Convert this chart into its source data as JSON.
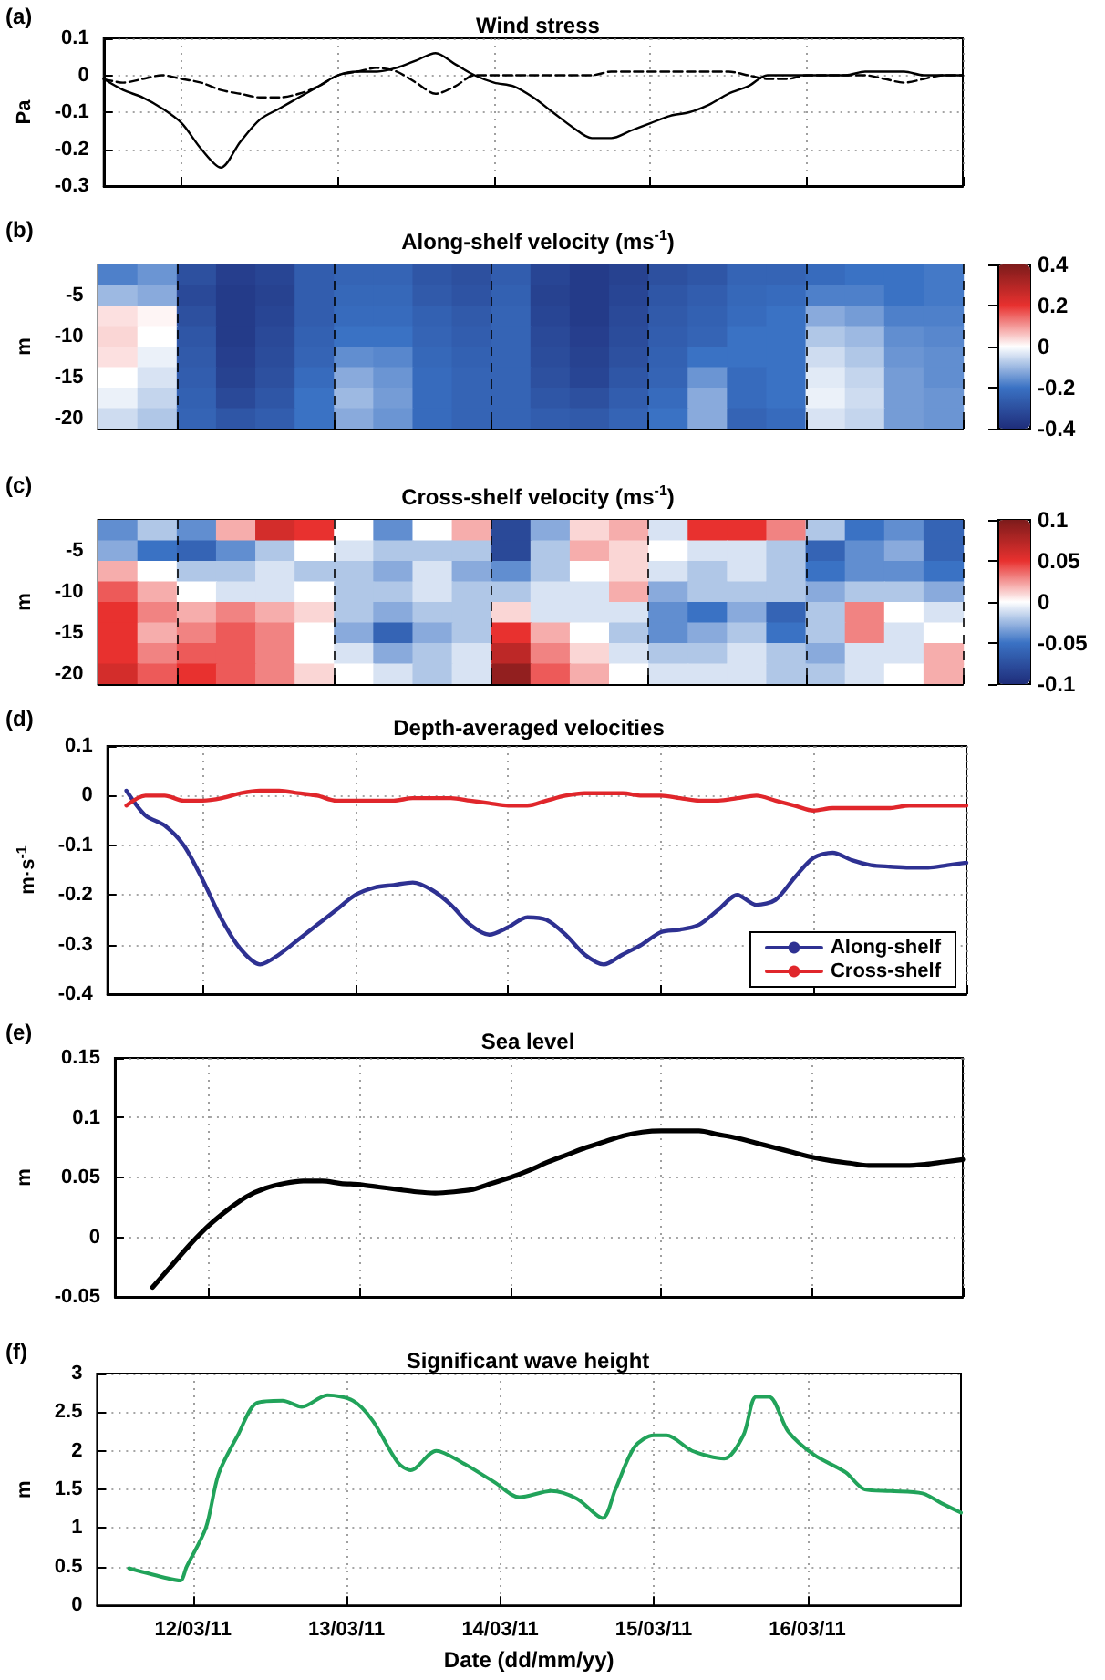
{
  "chart_data": [
    {
      "type": "line",
      "title": "Wind stress",
      "ylabel": "Pa",
      "annotations": [
        "(a)"
      ],
      "categories": [
        null,
        null,
        null,
        null,
        null,
        null,
        null,
        null,
        null,
        null,
        null,
        null,
        null,
        null,
        null,
        null,
        null,
        null,
        null,
        null,
        null,
        null,
        null,
        null,
        null,
        null,
        null,
        null,
        null,
        null,
        null,
        null,
        null,
        null,
        null,
        null,
        null,
        null,
        null,
        null,
        null,
        null,
        null,
        null,
        null
      ],
      "ylim": [
        -0.3,
        0.1
      ],
      "yticks": [
        -0.3,
        -0.2,
        -0.1,
        0,
        0.1
      ],
      "tick_labels": "y",
      "grid": true,
      "series": [
        {
          "color": "#000000",
          "line_style": "solid",
          "values": [
            -0.01,
            -0.04,
            -0.06,
            -0.09,
            -0.13,
            -0.2,
            -0.25,
            -0.18,
            -0.12,
            -0.09,
            -0.06,
            -0.03,
            0.0,
            0.01,
            0.01,
            0.02,
            0.04,
            0.06,
            0.03,
            0.0,
            -0.02,
            -0.03,
            -0.06,
            -0.1,
            -0.14,
            -0.17,
            -0.17,
            -0.15,
            -0.13,
            -0.11,
            -0.1,
            -0.08,
            -0.05,
            -0.03,
            0.0,
            0.0,
            0.0,
            0.0,
            0.0,
            0.01,
            0.01,
            0.01,
            0.0,
            0.0,
            0.0
          ]
        },
        {
          "color": "#000000",
          "line_style": "dashed",
          "values": [
            -0.01,
            -0.02,
            -0.01,
            0.0,
            -0.01,
            -0.02,
            -0.04,
            -0.05,
            -0.06,
            -0.06,
            -0.05,
            -0.03,
            0.0,
            0.01,
            0.02,
            0.01,
            -0.02,
            -0.05,
            -0.03,
            0.0,
            0.0,
            0.0,
            0.0,
            0.0,
            0.0,
            0.0,
            0.01,
            0.01,
            0.01,
            0.01,
            0.01,
            0.01,
            0.01,
            0.0,
            -0.01,
            -0.01,
            0.0,
            0.0,
            0.0,
            0.0,
            -0.01,
            -0.02,
            -0.01,
            0.0,
            0.0
          ]
        }
      ]
    },
    {
      "type": "heatmap",
      "title": "Along-shelf velocity (ms$^{-1}$)",
      "ylabel": "m",
      "annotations": [
        "(b)"
      ],
      "tick_labels": "y",
      "grid": "x",
      "categories": [
        null,
        null,
        null,
        null,
        null,
        null,
        null,
        null,
        null,
        null,
        null,
        null,
        null,
        null,
        null,
        null,
        null,
        null,
        null,
        null,
        null,
        null
      ],
      "y_categories": [
        null,
        "-5",
        null,
        "-10",
        null,
        "-15",
        null,
        "-20"
      ],
      "clim": [
        -0.4,
        0.4
      ],
      "cticks": [
        -0.4,
        -0.2,
        0,
        0.2,
        0.4
      ],
      "cells": [
        [
          -0.18,
          -0.15,
          -0.3,
          -0.35,
          -0.33,
          -0.26,
          -0.24,
          -0.24,
          -0.28,
          -0.3,
          -0.26,
          -0.33,
          -0.36,
          -0.34,
          -0.3,
          -0.28,
          -0.24,
          -0.24,
          -0.22,
          -0.2,
          -0.2,
          -0.19
        ],
        [
          -0.1,
          -0.12,
          -0.32,
          -0.36,
          -0.34,
          -0.26,
          -0.23,
          -0.23,
          -0.27,
          -0.29,
          -0.25,
          -0.34,
          -0.36,
          -0.33,
          -0.28,
          -0.26,
          -0.23,
          -0.22,
          -0.18,
          -0.18,
          -0.2,
          -0.19
        ],
        [
          0.03,
          0.01,
          -0.3,
          -0.36,
          -0.33,
          -0.26,
          -0.22,
          -0.22,
          -0.25,
          -0.27,
          -0.24,
          -0.33,
          -0.36,
          -0.32,
          -0.27,
          -0.25,
          -0.22,
          -0.2,
          -0.12,
          -0.14,
          -0.18,
          -0.18
        ],
        [
          0.04,
          0.0,
          -0.28,
          -0.36,
          -0.32,
          -0.25,
          -0.2,
          -0.2,
          -0.24,
          -0.26,
          -0.24,
          -0.32,
          -0.35,
          -0.31,
          -0.26,
          -0.24,
          -0.2,
          -0.2,
          -0.08,
          -0.1,
          -0.16,
          -0.17
        ],
        [
          0.03,
          -0.02,
          -0.27,
          -0.35,
          -0.31,
          -0.24,
          -0.16,
          -0.17,
          -0.23,
          -0.25,
          -0.24,
          -0.31,
          -0.34,
          -0.3,
          -0.25,
          -0.2,
          -0.2,
          -0.2,
          -0.05,
          -0.08,
          -0.15,
          -0.16
        ],
        [
          0.0,
          -0.04,
          -0.26,
          -0.34,
          -0.3,
          -0.22,
          -0.12,
          -0.15,
          -0.22,
          -0.24,
          -0.24,
          -0.3,
          -0.33,
          -0.28,
          -0.24,
          -0.15,
          -0.22,
          -0.2,
          -0.03,
          -0.06,
          -0.14,
          -0.16
        ],
        [
          -0.02,
          -0.06,
          -0.25,
          -0.32,
          -0.28,
          -0.2,
          -0.1,
          -0.14,
          -0.22,
          -0.24,
          -0.24,
          -0.28,
          -0.3,
          -0.26,
          -0.22,
          -0.12,
          -0.22,
          -0.2,
          -0.02,
          -0.05,
          -0.14,
          -0.15
        ],
        [
          -0.05,
          -0.08,
          -0.24,
          -0.28,
          -0.26,
          -0.2,
          -0.12,
          -0.15,
          -0.22,
          -0.24,
          -0.24,
          -0.26,
          -0.27,
          -0.24,
          -0.2,
          -0.12,
          -0.24,
          -0.22,
          -0.04,
          -0.06,
          -0.14,
          -0.15
        ]
      ]
    },
    {
      "type": "heatmap",
      "title": "Cross-shelf velocity (ms$^{-1}$)",
      "ylabel": "m",
      "annotations": [
        "(c)"
      ],
      "tick_labels": "y",
      "grid": "x",
      "categories": [
        null,
        null,
        null,
        null,
        null,
        null,
        null,
        null,
        null,
        null,
        null,
        null,
        null,
        null,
        null,
        null,
        null,
        null,
        null,
        null,
        null,
        null
      ],
      "y_categories": [
        null,
        "-5",
        null,
        "-10",
        null,
        "-15",
        null,
        "-20"
      ],
      "clim": [
        -0.1,
        0.1
      ],
      "cticks": [
        -0.1,
        -0.05,
        0,
        0.05,
        0.1
      ],
      "cells": [
        [
          -0.04,
          -0.02,
          -0.04,
          0.02,
          0.06,
          0.05,
          0.0,
          -0.04,
          0.0,
          0.02,
          -0.08,
          -0.03,
          0.01,
          0.02,
          -0.01,
          0.05,
          0.05,
          0.03,
          -0.02,
          -0.05,
          -0.04,
          -0.06
        ],
        [
          -0.03,
          -0.05,
          -0.06,
          -0.04,
          -0.02,
          0.0,
          -0.01,
          -0.02,
          -0.02,
          -0.02,
          -0.08,
          -0.02,
          0.02,
          0.01,
          0.0,
          -0.01,
          -0.01,
          -0.02,
          -0.06,
          -0.04,
          -0.03,
          -0.06
        ],
        [
          0.02,
          0.0,
          -0.02,
          -0.02,
          -0.01,
          -0.02,
          -0.02,
          -0.03,
          -0.01,
          -0.03,
          -0.04,
          -0.02,
          0.0,
          0.01,
          -0.01,
          -0.02,
          -0.01,
          -0.02,
          -0.05,
          -0.04,
          -0.04,
          -0.05
        ],
        [
          0.04,
          0.02,
          0.0,
          -0.01,
          -0.01,
          0.0,
          -0.02,
          -0.02,
          -0.01,
          -0.02,
          -0.02,
          -0.01,
          -0.01,
          0.02,
          -0.03,
          -0.02,
          -0.02,
          -0.02,
          -0.03,
          -0.02,
          -0.02,
          -0.03
        ],
        [
          0.05,
          0.03,
          0.02,
          0.03,
          0.02,
          0.01,
          -0.02,
          -0.03,
          -0.02,
          -0.02,
          0.01,
          -0.01,
          -0.01,
          -0.01,
          -0.04,
          -0.05,
          -0.03,
          -0.06,
          -0.02,
          0.03,
          0.0,
          -0.01
        ],
        [
          0.05,
          0.02,
          0.03,
          0.04,
          0.03,
          0.0,
          -0.03,
          -0.06,
          -0.03,
          -0.02,
          0.05,
          0.02,
          0.0,
          -0.02,
          -0.04,
          -0.03,
          -0.02,
          -0.05,
          -0.02,
          0.03,
          -0.01,
          0.0
        ],
        [
          0.05,
          0.03,
          0.04,
          0.04,
          0.03,
          0.0,
          -0.01,
          -0.03,
          -0.02,
          -0.01,
          0.07,
          0.03,
          0.01,
          -0.01,
          -0.02,
          -0.02,
          -0.01,
          -0.02,
          -0.03,
          -0.01,
          -0.01,
          0.02
        ],
        [
          0.06,
          0.04,
          0.05,
          0.04,
          0.03,
          0.01,
          0.0,
          -0.01,
          -0.02,
          -0.01,
          0.09,
          0.04,
          0.02,
          0.0,
          -0.01,
          -0.01,
          -0.01,
          -0.02,
          -0.02,
          -0.01,
          0.0,
          0.02
        ]
      ]
    },
    {
      "type": "line",
      "title": "Depth-averaged velocities",
      "ylabel": "m·s$^{-1}$",
      "annotations": [
        "(d)"
      ],
      "categories": [
        null,
        null,
        null,
        null,
        null,
        null,
        null,
        null,
        null,
        null,
        null,
        null,
        null,
        null,
        null,
        null,
        null,
        null,
        null,
        null,
        null,
        null,
        null,
        null,
        null,
        null,
        null,
        null,
        null,
        null,
        null,
        null,
        null,
        null,
        null,
        null,
        null,
        null,
        null,
        null,
        null,
        null,
        null,
        null,
        null,
        null
      ],
      "ylim": [
        -0.4,
        0.1
      ],
      "yticks": [
        -0.4,
        -0.3,
        -0.2,
        -0.1,
        0,
        0.1
      ],
      "tick_labels": "y",
      "grid": true,
      "legend": "bottom right",
      "series": [
        {
          "name": "Along-shelf",
          "color": "#2e3192",
          "values": [
            null,
            0.01,
            -0.04,
            -0.06,
            -0.1,
            -0.17,
            -0.25,
            -0.31,
            -0.34,
            -0.32,
            -0.29,
            -0.26,
            -0.23,
            -0.2,
            -0.185,
            -0.18,
            -0.175,
            -0.19,
            -0.22,
            -0.26,
            -0.28,
            -0.265,
            -0.245,
            -0.25,
            -0.28,
            -0.32,
            -0.34,
            -0.32,
            -0.3,
            -0.275,
            -0.27,
            -0.26,
            -0.23,
            -0.2,
            -0.22,
            -0.21,
            -0.165,
            -0.125,
            -0.115,
            -0.13,
            -0.14,
            -0.143,
            -0.145,
            -0.145,
            -0.14,
            -0.135
          ]
        },
        {
          "name": "Cross-shelf",
          "color": "#e0262b",
          "values": [
            null,
            -0.02,
            0.0,
            0.0,
            -0.01,
            -0.01,
            -0.005,
            0.005,
            0.01,
            0.01,
            0.005,
            0.0,
            -0.01,
            -0.01,
            -0.01,
            -0.01,
            -0.005,
            -0.005,
            -0.005,
            -0.01,
            -0.015,
            -0.02,
            -0.02,
            -0.01,
            0.0,
            0.005,
            0.005,
            0.005,
            0.0,
            0.0,
            -0.005,
            -0.01,
            -0.01,
            -0.005,
            0.0,
            -0.01,
            -0.02,
            -0.03,
            -0.025,
            -0.025,
            -0.025,
            -0.025,
            -0.02,
            -0.02,
            -0.02,
            -0.02
          ]
        }
      ]
    },
    {
      "type": "line",
      "title": "Sea level",
      "ylabel": "m",
      "annotations": [
        "(e)"
      ],
      "categories": [
        null,
        null,
        null,
        null,
        null,
        null,
        null,
        null,
        null,
        null,
        null,
        null,
        null,
        null,
        null,
        null,
        null,
        null,
        null,
        null,
        null,
        null,
        null,
        null,
        null,
        null,
        null,
        null,
        null,
        null,
        null,
        null,
        null,
        null,
        null,
        null,
        null,
        null,
        null,
        null,
        null,
        null,
        null,
        null,
        null,
        null
      ],
      "ylim": [
        -0.05,
        0.15
      ],
      "yticks": [
        -0.05,
        0,
        0.05,
        0.1,
        0.15
      ],
      "tick_labels": "y",
      "grid": true,
      "series": [
        {
          "color": "#000000",
          "values": [
            null,
            null,
            -0.042,
            -0.024,
            -0.006,
            0.01,
            0.023,
            0.034,
            0.041,
            0.045,
            0.047,
            0.047,
            0.045,
            0.044,
            0.042,
            0.04,
            0.038,
            0.037,
            0.038,
            0.04,
            0.045,
            0.05,
            0.056,
            0.063,
            0.069,
            0.075,
            0.08,
            0.085,
            0.088,
            0.089,
            0.089,
            0.089,
            0.086,
            0.083,
            0.079,
            0.075,
            0.071,
            0.067,
            0.064,
            0.062,
            0.06,
            0.06,
            0.06,
            0.061,
            0.063,
            0.065
          ]
        }
      ]
    },
    {
      "type": "line",
      "title": "Significant wave height",
      "ylabel": "m",
      "xlabel": "Date (dd/mm/yy)",
      "annotations": [
        "(f)"
      ],
      "xlim": [
        "--03-11T09:00",
        "--03-17T00:00"
      ],
      "xticks": [
        {
          "value": "--03-12",
          "label": "12/03/11"
        },
        {
          "value": "--03-13",
          "label": "13/03/11"
        },
        {
          "value": "--03-14",
          "label": "14/03/11"
        },
        {
          "value": "--03-15",
          "label": "15/03/11"
        },
        {
          "value": "--03-16",
          "label": "16/03/11"
        }
      ],
      "ylim": [
        0,
        3
      ],
      "yticks": [
        0,
        0.5,
        1,
        1.5,
        2,
        2.5,
        3
      ],
      "grid": true,
      "series": [
        {
          "color": "#21a35a",
          "x": [
            "--03-11T14:00",
            "--03-11T20:00",
            "--03-11T22:00",
            "--03-11T23:00",
            "--03-12T02:00",
            "--03-12T04:00",
            "--03-12T07:00",
            "--03-12T10:00",
            "--03-12T14:00",
            "--03-12T17:00",
            "--03-12T21:00",
            "--03-13T01:00",
            "--03-13T04:00",
            "--03-13T08:00",
            "--03-13T10:00",
            "--03-13T14:00",
            "--03-13T18:00",
            "--03-13T23:00",
            "--03-14T03:00",
            "--03-14T08:00",
            "--03-14T12:00",
            "--03-14T16:00",
            "--03-14T18:00",
            "--03-14T21:00",
            "--03-15T00:00",
            "--03-15T02:00",
            "--03-15T06:00",
            "--03-15T11:00",
            "--03-15T14:00",
            "--03-15T16:00",
            "--03-15T18:00",
            "--03-15T21:00",
            "--03-16T01:00",
            "--03-16T06:00",
            "--03-16T09:00",
            "--03-16T13:00",
            "--03-16T18:00",
            "--03-16T21:00",
            "--03-17T00:00"
          ],
          "values": [
            0.48,
            0.35,
            0.32,
            0.5,
            1.0,
            1.7,
            2.2,
            2.62,
            2.65,
            2.57,
            2.72,
            2.65,
            2.4,
            1.85,
            1.75,
            2.0,
            1.85,
            1.6,
            1.4,
            1.48,
            1.38,
            1.13,
            1.5,
            2.05,
            2.2,
            2.2,
            2.0,
            1.9,
            2.2,
            2.7,
            2.7,
            2.25,
            1.95,
            1.72,
            1.5,
            1.48,
            1.45,
            1.32,
            1.2
          ]
        }
      ]
    }
  ]
}
